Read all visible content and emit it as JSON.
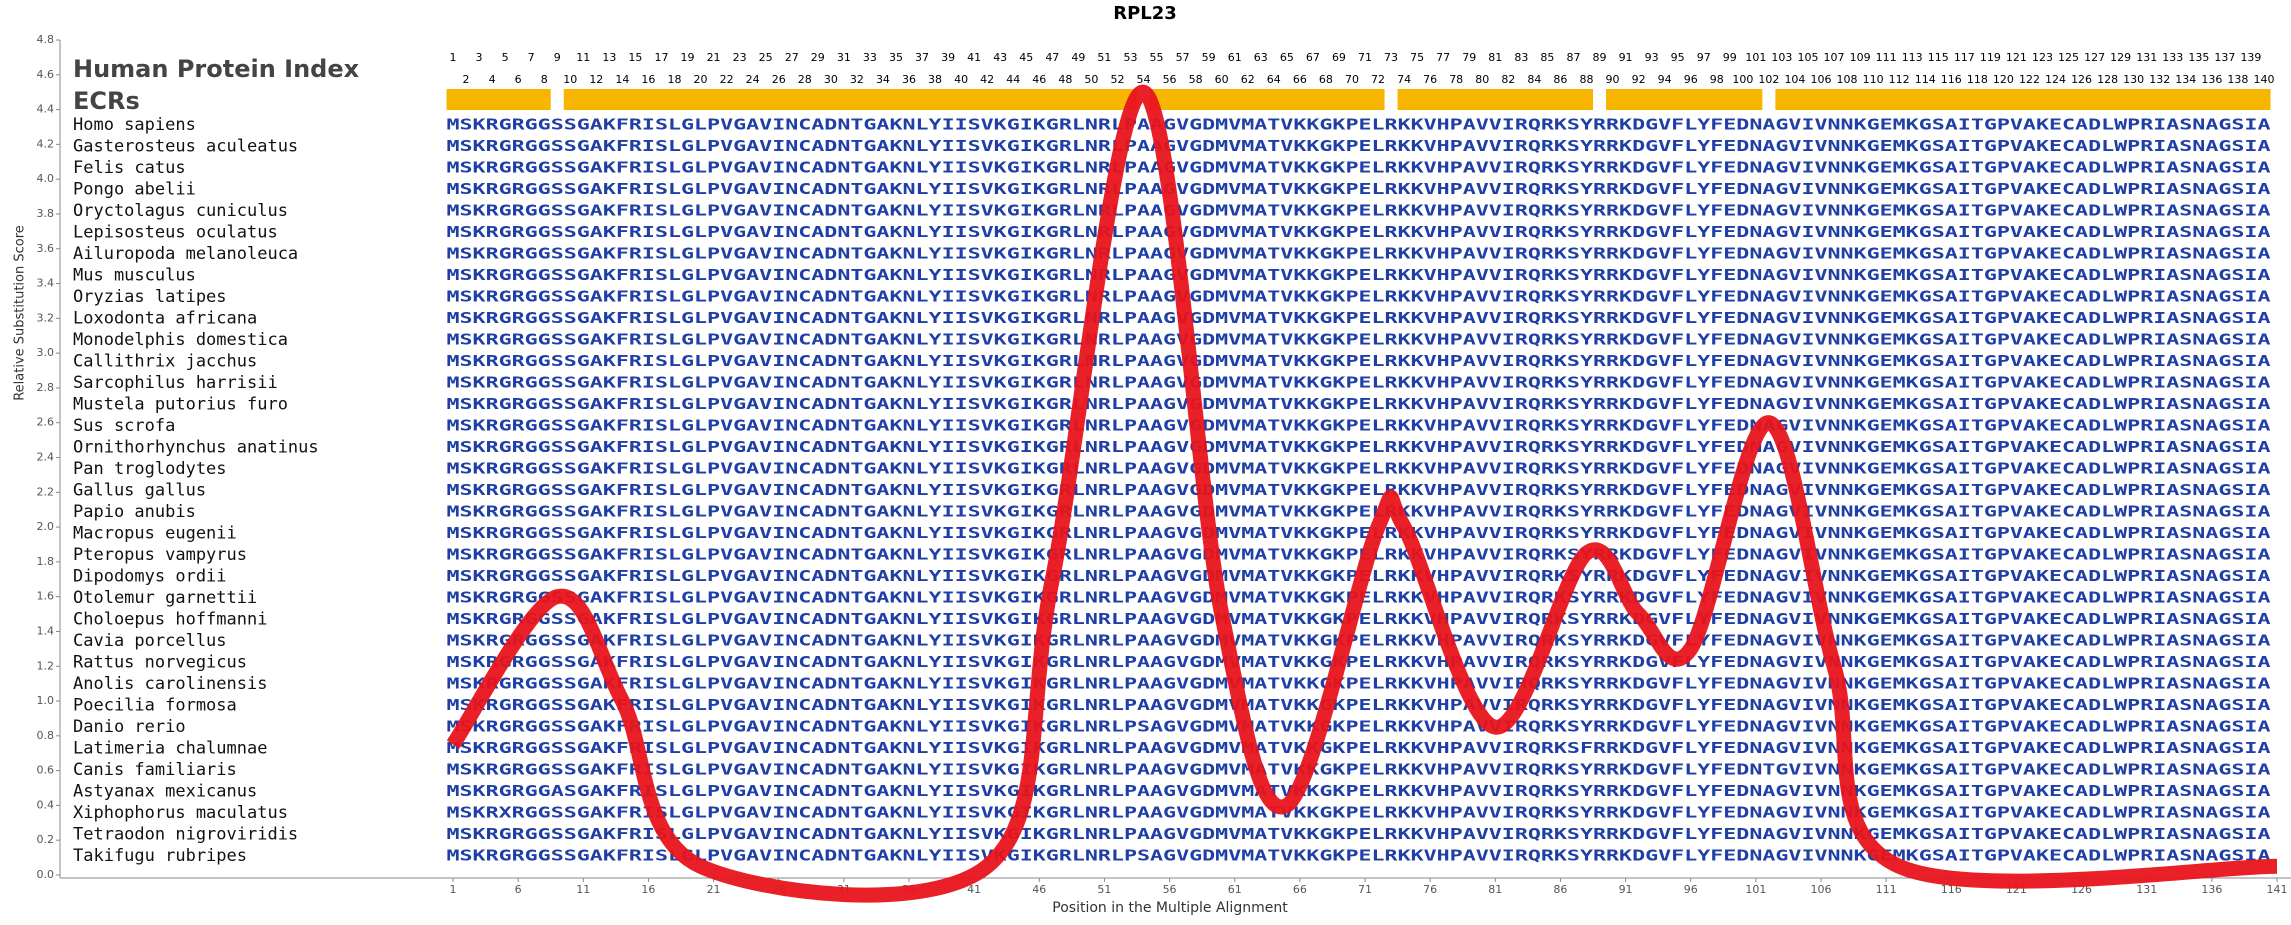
{
  "chart_data": {
    "type": "line",
    "title": "RPL23",
    "x_label": "Position in the Multiple Alignment",
    "y_label": "Relative Substitution Score",
    "index_label": "Human Protein Index",
    "ecr_label": "ECRs",
    "index_odd": [
      1,
      3,
      5,
      7,
      9,
      11,
      13,
      15,
      17,
      19,
      21,
      23,
      25,
      27,
      29,
      31,
      33,
      35,
      37,
      39,
      41,
      43,
      45,
      47,
      49,
      51,
      53,
      55,
      57,
      59,
      61,
      63,
      65,
      67,
      69,
      71,
      73,
      75,
      77,
      79,
      81,
      83,
      85,
      87,
      89,
      91,
      93,
      95,
      97,
      99,
      101,
      103,
      105,
      107,
      109,
      111,
      113,
      115,
      117,
      119,
      121,
      123,
      125,
      127,
      129,
      131,
      133,
      135,
      137,
      139
    ],
    "index_even": [
      2,
      4,
      6,
      8,
      10,
      12,
      14,
      16,
      18,
      20,
      22,
      24,
      26,
      28,
      30,
      32,
      34,
      36,
      38,
      40,
      42,
      44,
      46,
      48,
      50,
      52,
      54,
      56,
      58,
      60,
      62,
      64,
      66,
      68,
      70,
      72,
      74,
      76,
      78,
      80,
      82,
      84,
      86,
      88,
      90,
      92,
      94,
      96,
      98,
      100,
      102,
      104,
      106,
      108,
      110,
      112,
      114,
      116,
      118,
      120,
      122,
      124,
      126,
      128,
      130,
      132,
      134,
      136,
      138,
      140
    ],
    "ecrs": [
      [
        1,
        8
      ],
      [
        10,
        53
      ],
      [
        55,
        72
      ],
      [
        74,
        88
      ],
      [
        90,
        101
      ],
      [
        103,
        140
      ]
    ],
    "ecr_color": "#f7b500",
    "sequence_color": "#1f3fa6",
    "species": [
      {
        "name": "Homo sapiens",
        "sequence": "MSKRGRGGSSGAKFRISLGLPVGAVINCADNTGAKNLYIISVKGIKGRLNRLPAAGVGDMVMATVKKGKPELRKKVHPAVVIRQRKSYRRKDGVFLYFEDNAGVIVNNKGEMKGSAITGPVAKECADLWPRIASNAGSIA"
      },
      {
        "name": "Gasterosteus aculeatus",
        "sequence": "MSKRGRGGSSGAKFRISLGLPVGAVINCADNTGAKNLYIISVKGIKGRLNRLPAAGVGDMVMATVKKGKPELRKKVHPAVVIRQRKSYRRKDGVFLYFEDNAGVIVNNKGEMKGSAITGPVAKECADLWPRIASNAGSIA"
      },
      {
        "name": "Felis catus",
        "sequence": "MSKRGRGGSSGAKFRISLGLPVGAVINCADNTGAKNLYIISVKGIKGRLNRLPAAGVGDMVMATVKKGKPELRKKVHPAVVIRQRKSYRRKDGVFLYFEDNAGVIVNNKGEMKGSAITGPVAKECADLWPRIASNAGSIA"
      },
      {
        "name": "Pongo abelii",
        "sequence": "MSKRGRGGSSGAKFRISLGLPVGAVINCADNTGAKNLYIISVKGIKGRLNRLPAAGVGDMVMATVKKGKPELRKKVHPAVVIRQRKSYRRKDGVFLYFEDNAGVIVNNKGEMKGSAITGPVAKECADLWPRIASNAGSIA"
      },
      {
        "name": "Oryctolagus cuniculus",
        "sequence": "MSKRGRGGSSGAKFRISLGLPVGAVINCADNTGAKNLYIISVKGIKGRLNRLPAAGVGDMVMATVKKGKPELRKKVHPAVVIRQRKSYRRKDGVFLYFEDNAGVIVNNKGEMKGSAITGPVAKECADLWPRIASNAGSIA"
      },
      {
        "name": "Lepisosteus oculatus",
        "sequence": "MSKRGRGGSSGAKFRISLGLPVGAVINCADNTGAKNLYIISVKGIKGRLNRLPAAGVGDMVMATVKKGKPELRKKVHPAVVIRQRKSYRRKDGVFLYFEDNAGVIVNNKGEMKGSAITGPVAKECADLWPRIASNAGSIA"
      },
      {
        "name": "Ailuropoda melanoleuca",
        "sequence": "MSKRGRGGSSGAKFRISLGLPVGAVINCADNTGAKNLYIISVKGIKGRLNRLPAAGVGDMVMATVKKGKPELRKKVHPAVVIRQRKSYRRKDGVFLYFEDNAGVIVNNKGEMKGSAITGPVAKECADLWPRIASNAGSIA"
      },
      {
        "name": "Mus musculus",
        "sequence": "MSKRGRGGSSGAKFRISLGLPVGAVINCADNTGAKNLYIISVKGIKGRLNRLPAAGVGDMVMATVKKGKPELRKKVHPAVVIRQRKSYRRKDGVFLYFEDNAGVIVNNKGEMKGSAITGPVAKECADLWPRIASNAGSIA"
      },
      {
        "name": "Oryzias latipes",
        "sequence": "MSKRGRGGSSGAKFRISLGLPVGAVINCADNTGAKNLYIISVKGIKGRLNRLPAAGVGDMVMATVKKGKPELRKKVHPAVVIRQRKSYRRKDGVFLYFEDNAGVIVNNKGEMKGSAITGPVAKECADLWPRIASNAGSIA"
      },
      {
        "name": "Loxodonta africana",
        "sequence": "MSKRGRGGSSGAKFRISLGLPVGAVINCADNTGAKNLYIISVKGIKGRLNRLPAAGVGDMVMATVKKGKPELRKKVHPAVVIRQRKSYRRKDGVFLYFEDNAGVIVNNKGEMKGSAITGPVAKECADLWPRIASNAGSIA"
      },
      {
        "name": "Monodelphis domestica",
        "sequence": "MSKRGRGGSSGAKFRISLGLPVGAVINCADNTGAKNLYIISVKGIKGRLNRLPAAGVGDMVMATVKKGKPELRKKVHPAVVIRQRKSYRRKDGVFLYFEDNAGVIVNNKGEMKGSAITGPVAKECADLWPRIASNAGSIA"
      },
      {
        "name": "Callithrix jacchus",
        "sequence": "MSKRGRGGSSGAKFRISLGLPVGAVINCADNTGAKNLYIISVKGIKGRLNRLPAAGVGDMVMATVKKGKPELRKKVHPAVVIRQRKSYRRKDGVFLYFEDNAGVIVNNKGEMKGSAITGPVAKECADLWPRIASNAGSIA"
      },
      {
        "name": "Sarcophilus harrisii",
        "sequence": "MSKRGRGGSSGAKFRISLGLPVGAVINCADNTGAKNLYIISVKGIKGRLNRLPAAGVGDMVMATVKKGKPELRKKVHPAVVIRQRKSYRRKDGVFLYFEDNAGVIVNNKGEMKGSAITGPVAKECADLWPRIASNAGSIA"
      },
      {
        "name": "Mustela putorius furo",
        "sequence": "MSKRGRGGSSGAKFRISLGLPVGAVINCADNTGAKNLYIISVKGIKGRLNRLPAAGVGDMVMATVKKGKPELRKKVHPAVVIRQRKSYRRKDGVFLYFEDNAGVIVNNKGEMKGSAITGPVAKECADLWPRIASNAGSIA"
      },
      {
        "name": "Sus scrofa",
        "sequence": "MSKRGRGGSSGAKFRISLGLPVGAVINCADNTGAKNLYIISVKGIKGRLNRLPAAGVGDMVMATVKKGKPELRKKVHPAVVIRQRKSYRRKDGVFLYFEDNAGVIVNNKGEMKGSAITGPVAKECADLWPRIASNAGSIA"
      },
      {
        "name": "Ornithorhynchus anatinus",
        "sequence": "MSKRGRGGSSGAKFRISLGLPVGAVINCADNTGAKNLYIISVKGIKGRLNRLPAAGVGDMVMATVKKGKPELRKKVHPAVVIRQRKSYRRKDGVFLYFEDNAGVIVNNKGEMKGSAITGPVAKECADLWPRIASNAGSIA"
      },
      {
        "name": "Pan troglodytes",
        "sequence": "MSKRGRGGSSGAKFRISLGLPVGAVINCADNTGAKNLYIISVKGIKGRLNRLPAAGVGDMVMATVKKGKPELRKKVHPAVVIRQRKSYRRKDGVFLYFEDNAGVIVNNKGEMKGSAITGPVAKECADLWPRIASNAGSIA"
      },
      {
        "name": "Gallus gallus",
        "sequence": "MSKRGRGGSSGAKFRISLGLPVGAVINCADNTGAKNLYIISVKGIKGRLNRLPAAGVGDMVMATVKKGKPELRKKVHPAVVIRQRKSYRRKDGVFLYFEDNAGVIVNNKGEMKGSAITGPVAKECADLWPRIASNAGSIA"
      },
      {
        "name": "Papio anubis",
        "sequence": "MSKRGRGGSSGAKFRISLGLPVGAVINCADNTGAKNLYIISVKGIKGRLNRLPAAGVGDMVMATVKKGKPELRKKVHPAVVIRQRKSYRRKDGVFLYFEDNAGVIVNNKGEMKGSAITGPVAKECADLWPRIASNAGSIA"
      },
      {
        "name": "Macropus eugenii",
        "sequence": "MSKRGRGGSSGAKFRISLGLPVGAVINCADNTGAKNLYIISVKGIKGRLNRLPAAGVGDMVMATVKKGKPELRKKVHPAVVIRQRKSYRRKDGVFLYFEDNAGVIVNNKGEMKGSAITGPVAKECADLWPRIASNAGSIA"
      },
      {
        "name": "Pteropus vampyrus",
        "sequence": "MSKRGRGGSSGAKFRISLGLPVGAVINCADNTGAKNLYIISVKGIKGRLNRLPAAGVGDMVMATVKKGKPELRKKVHPAVVIRQRKSYRRKDGVFLYFEDNAGVIVNNKGEMKGSAITGPVAKECADLWPRIASNAGSIA"
      },
      {
        "name": "Dipodomys ordii",
        "sequence": "MSKRGRGGSSGAKFRISLGLPVGAVINCADNTGAKNLYIISVKGIKGRLNRLPAAGVGDMVMATVKKGKPELRKKVHPAVVIRQRKSYRRKDGVFLYFEDNAGVIVNNKGEMKGSAITGPVAKECADLWPRIASNAGSIA"
      },
      {
        "name": "Otolemur garnettii",
        "sequence": "MSKRGRGGSSGAKFRISLGLPVGAVINCADNTGAKNLYIISVKGIKGRLNRLPAAGVGDMVMATVKKGKPELRKKVHPAVVIRQRKSYRRKDGVFLYFEDNAGVIVNNKGEMKGSAITGPVAKECADLWPRIASNAGSIA"
      },
      {
        "name": "Choloepus hoffmanni",
        "sequence": "MSKRGRGGSSGAKFRISLGLPVGAVINCADNTGAKNLYIISVKGIKGRLNRLPAAGVGDMVMATVKKGKPELRKKVHPAVVIRQRKSYRRKDGVFLYFEDNAGVIVNNKGEMKGSAITGPVAKECADLWPRIASNAGSIA"
      },
      {
        "name": "Cavia porcellus",
        "sequence": "MSKRGRGGSSGAKFRISLGLPVGAVINCADNTGAKNLYIISVKGIKGRLNRLPAAGVGDMVMATVKKGKPELRKKVHPAVVIRQRKSYRRKDGVFLYFEDNAGVIVNNKGEMKGSAITGPVAKECADLWPRIASNAGSIA"
      },
      {
        "name": "Rattus norvegicus",
        "sequence": "MSKRGRGGSSGAKFRISLGLPVGAVINCADNTGAKNLYIISVKGIKGRLNRLPAAGVGDMVMATVKKGKPELRKKVHPAVVIRQRKSYRRKDGVFLYFEDNAGVIVNNKGEMKGSAITGPVAKECADLWPRIASNAGSIA"
      },
      {
        "name": "Anolis carolinensis",
        "sequence": "MSKRGRGGSSGAKFRISLGLPVGAVINCADNTGAKNLYIISVKGIKGRLNRLPAAGVGDMVMATVKKGKPELRKKVHPAVVIRQRKSYRRKDGVFLYFEDNAGVIVNNKGEMKGSAITGPVAKECADLWPRIASNAGSIA"
      },
      {
        "name": "Poecilia formosa",
        "sequence": "MSKRGRGGSSGAKFRISLGLPVGAVINCADNTGAKNLYIISVKGIKGRLNRLPAAGVGDMVMATVKKGKPELRKKVHPAVVIRQRKSYRRKDGVFLYFEDNAGVIVNNKGEMKGSAITGPVAKECADLWPRIASNAGSIA"
      },
      {
        "name": "Danio rerio",
        "sequence": "MSKRGRGGSSGAKFRISLGLPVGAVINCADNTGAKNLYIISVKGIKGRLNRLPSAGVGDMVMATVKKGKPELRKKVHPAVVIRQRKSYRRKDGVFLYFEDNAGVIVNNKGEMKGSAITGPVAKECADLWPRIASNAGSIA"
      },
      {
        "name": "Latimeria chalumnae",
        "sequence": "MSKRGRGGSSGAKFRISLGLPVGAVINCADNTGAKNLYIISVKGIKGRLNRLPAAGVGDMVMATVKKGKPELRKKVHPAVVIRQRKSFRRKDGVFLYFEDNAGVIVNNKGEMKGSAITGPVAKECADLWPRIASNAGSIA"
      },
      {
        "name": "Canis familiaris",
        "sequence": "MSKRGRGGSSGAKFRISLGLPVGAVINCADNTGAKNLYIISVKGIKGRLNRLPAAGVGDMVMATVKKGKPELRKKVHPAVVIRQRKSYRRKDGVFLYFEDNTGVIVNNKGEMKGSAITGPVAKECADLWPRIASNAGSIA"
      },
      {
        "name": "Astyanax mexicanus",
        "sequence": "MSKRGRGGASGAKFRISLGLPVGAVINCADNTGAKNLYIISVKGIKGRLNRLPAAGVGDMVMATVKKGKPELRKKVHPAVVIRQRKSYRRKDGVFLYFEDNAGVIVNNKGEMKGSAITGPVAKECADLWPRIASNAGSIA"
      },
      {
        "name": "Xiphophorus maculatus",
        "sequence": "MSKRXRGGSSGAKFRISLGLPVGAVINCADNTGAKNLYIISVKGIKGRLNRLPAAGVGDMVMATVKKGKPELRKKVHPAVVIRQRKSYRRKDGVFLYFEDNAGVIVNNKGEMKGSAITGPVAKECADLWPRIASNAGSIA"
      },
      {
        "name": "Tetraodon nigroviridis",
        "sequence": "MSKRGRGGSSGAKFRISLGLPVGAVINCADNTGAKNLYIISVKGIKGRLNRLPAAGVGDMVMATVKKGKPELRKKVHPAVVIRQRKSYRRKDGVFLYFEDNAGVIVNNKGEMKGSAITGPVAKECADLWPRIASNAGSIA"
      },
      {
        "name": "Takifugu rubripes",
        "sequence": "MSKRGRGGSSGAKFRISLGLPVGAVINCADNTGAKNLYIISVKGIKGRLNRLPSAGVGDMVMATVKKGKPELRKKVHPAVVIRQRKSYRRKDGVFLYFEDNAGVIVNNKGEMKGSAITGPVAKECADLWPRIASNAGSIA"
      }
    ],
    "x": [
      1,
      9,
      14,
      20,
      42,
      47,
      54,
      60,
      65,
      72,
      74,
      81,
      88,
      92,
      96,
      102,
      107,
      112,
      141
    ],
    "values": [
      0.75,
      1.6,
      1.0,
      0.05,
      0.05,
      1.7,
      4.5,
      1.5,
      0.4,
      2.0,
      2.0,
      0.85,
      1.85,
      1.5,
      1.3,
      2.6,
      1.2,
      0.05,
      0.05
    ],
    "color": "#e8141c",
    "xlim": [
      1,
      141
    ],
    "ylim": [
      0,
      4.8
    ],
    "xticks": [
      1,
      6,
      11,
      16,
      21,
      26,
      31,
      36,
      41,
      46,
      51,
      56,
      61,
      66,
      71,
      76,
      81,
      86,
      91,
      96,
      101,
      106,
      111,
      116,
      121,
      126,
      131,
      136,
      141
    ],
    "yticks": [
      {
        "value": 0,
        "label": "0.0"
      },
      0.2,
      0.4,
      0.6,
      0.8,
      {
        "value": 1,
        "label": "1.0"
      },
      1.2,
      1.4,
      1.6,
      1.8,
      {
        "value": 2,
        "label": "2.0"
      },
      2.2,
      2.4,
      2.6,
      2.8,
      {
        "value": 3,
        "label": "3.0"
      },
      3.2,
      3.4,
      3.6,
      3.8,
      {
        "value": 4,
        "label": "4.0"
      },
      4.2,
      4.4,
      4.6,
      4.8
    ]
  }
}
